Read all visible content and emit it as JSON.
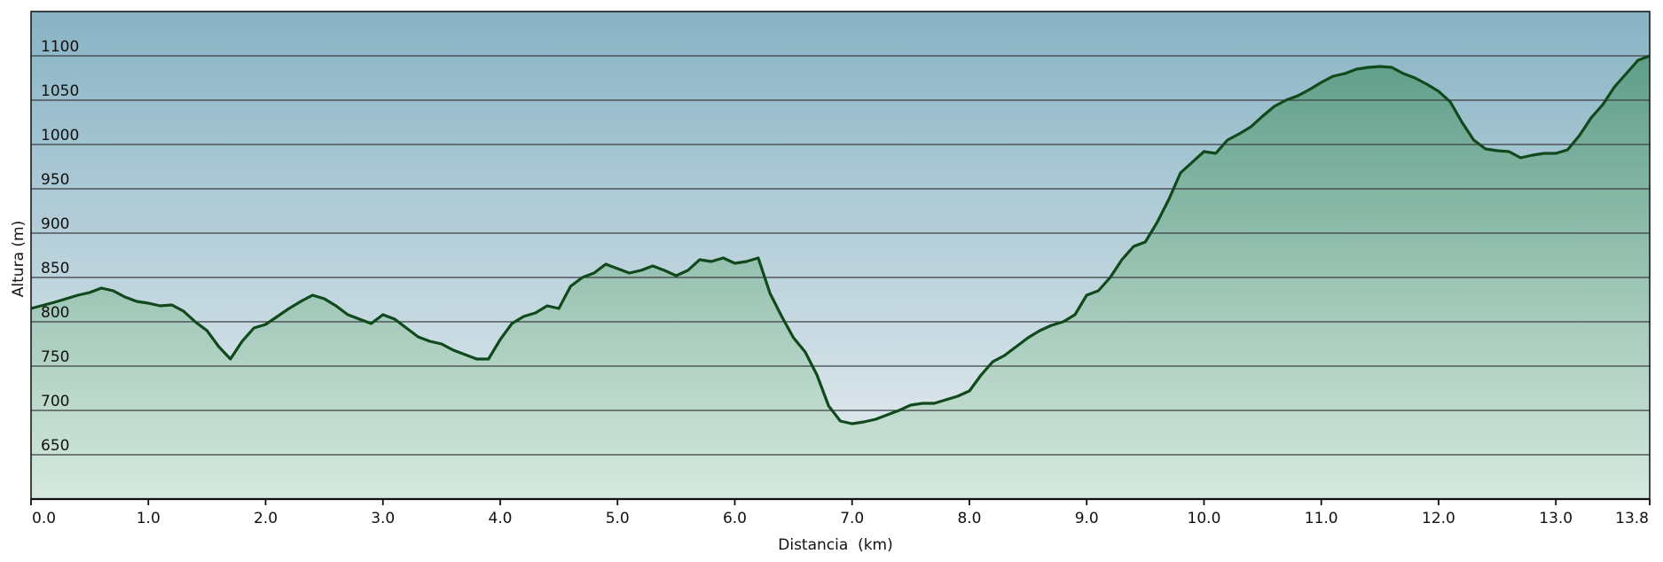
{
  "chart_data": {
    "type": "area",
    "title": "",
    "xlabel": "Distancia  (km)",
    "ylabel": "Altura (m)",
    "xlim": [
      0,
      13.8
    ],
    "ylim": [
      600,
      1150
    ],
    "x_ticks": [
      "0.0",
      "1.0",
      "2.0",
      "3.0",
      "4.0",
      "5.0",
      "6.0",
      "7.0",
      "8.0",
      "9.0",
      "10.0",
      "11.0",
      "12.0",
      "13.0",
      "13.8"
    ],
    "x_tick_values": [
      0,
      1,
      2,
      3,
      4,
      5,
      6,
      7,
      8,
      9,
      10,
      11,
      12,
      13,
      13.8
    ],
    "y_ticks": [
      "650",
      "700",
      "750",
      "800",
      "850",
      "900",
      "950",
      "1000",
      "1050",
      "1100"
    ],
    "y_tick_values": [
      650,
      700,
      750,
      800,
      850,
      900,
      950,
      1000,
      1050,
      1100
    ],
    "grid": true,
    "legend": "none",
    "colors": {
      "line": "#104a1c",
      "fill_top": "#5f9e89",
      "fill_bottom": "#d6e9de",
      "bg_top": "#88b3c4",
      "bg_bottom": "#eaeff2"
    },
    "series": [
      {
        "x": [
          0.0,
          0.2,
          0.4,
          0.5,
          0.6,
          0.7,
          0.8,
          0.9,
          1.0,
          1.1,
          1.2,
          1.3,
          1.4,
          1.5,
          1.6,
          1.7,
          1.8,
          1.9,
          2.0,
          2.1,
          2.2,
          2.3,
          2.4,
          2.5,
          2.6,
          2.7,
          2.8,
          2.9,
          3.0,
          3.1,
          3.2,
          3.3,
          3.4,
          3.5,
          3.6,
          3.7,
          3.8,
          3.9,
          4.0,
          4.1,
          4.2,
          4.3,
          4.4,
          4.5,
          4.6,
          4.7,
          4.8,
          4.9,
          5.0,
          5.1,
          5.2,
          5.3,
          5.4,
          5.5,
          5.6,
          5.7,
          5.8,
          5.9,
          6.0,
          6.1,
          6.2,
          6.3,
          6.4,
          6.5,
          6.6,
          6.7,
          6.8,
          6.9,
          7.0,
          7.1,
          7.2,
          7.3,
          7.4,
          7.5,
          7.6,
          7.7,
          7.8,
          7.9,
          8.0,
          8.1,
          8.2,
          8.3,
          8.4,
          8.5,
          8.6,
          8.7,
          8.8,
          8.9,
          9.0,
          9.1,
          9.2,
          9.3,
          9.4,
          9.5,
          9.6,
          9.7,
          9.8,
          9.9,
          10.0,
          10.1,
          10.2,
          10.3,
          10.4,
          10.5,
          10.6,
          10.7,
          10.8,
          10.9,
          11.0,
          11.1,
          11.2,
          11.3,
          11.4,
          11.5,
          11.6,
          11.7,
          11.8,
          11.9,
          12.0,
          12.1,
          12.2,
          12.3,
          12.4,
          12.5,
          12.6,
          12.7,
          12.8,
          12.9,
          13.0,
          13.1,
          13.2,
          13.3,
          13.4,
          13.5,
          13.6,
          13.7,
          13.8
        ],
        "values": [
          815,
          822,
          830,
          833,
          838,
          835,
          828,
          823,
          821,
          818,
          819,
          812,
          800,
          790,
          772,
          758,
          778,
          793,
          797,
          806,
          815,
          823,
          830,
          826,
          818,
          808,
          803,
          798,
          808,
          803,
          793,
          783,
          778,
          775,
          768,
          763,
          758,
          758,
          780,
          798,
          806,
          810,
          818,
          815,
          840,
          850,
          855,
          865,
          860,
          855,
          858,
          863,
          858,
          852,
          858,
          870,
          868,
          872,
          866,
          868,
          872,
          832,
          806,
          782,
          766,
          740,
          705,
          688,
          685,
          687,
          690,
          695,
          700,
          706,
          708,
          708,
          712,
          716,
          722,
          740,
          755,
          762,
          772,
          782,
          790,
          796,
          800,
          808,
          830,
          835,
          850,
          870,
          885,
          890,
          912,
          938,
          968,
          980,
          992,
          990,
          1005,
          1012,
          1020,
          1032,
          1043,
          1050,
          1055,
          1062,
          1070,
          1077,
          1080,
          1085,
          1087,
          1088,
          1087,
          1080,
          1075,
          1068,
          1060,
          1048,
          1025,
          1005,
          995,
          993,
          992,
          985,
          988,
          990,
          990,
          994,
          1010,
          1030,
          1045,
          1065,
          1080,
          1095,
          1100
        ]
      }
    ]
  }
}
